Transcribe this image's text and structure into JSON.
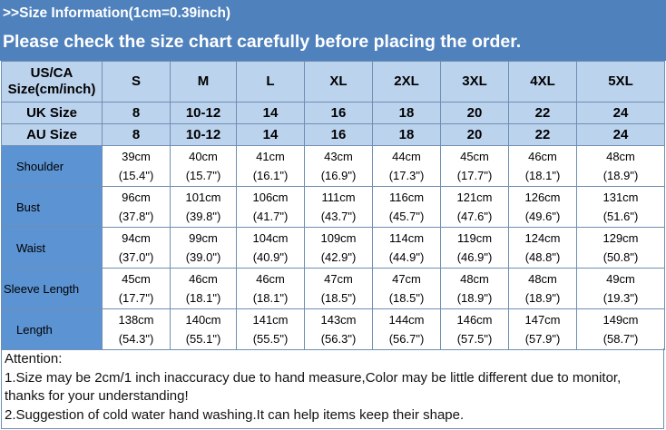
{
  "banner": {
    "line1": ">>Size Information(1cm=0.39inch)",
    "line2": "Please check the size chart carefully before placing the order."
  },
  "header": {
    "label": "US/CA Size(cm/inch)",
    "sizes": [
      "S",
      "M",
      "L",
      "XL",
      "2XL",
      "3XL",
      "4XL",
      "5XL"
    ]
  },
  "uk": {
    "label": "UK Size",
    "values": [
      "8",
      "10-12",
      "14",
      "16",
      "18",
      "20",
      "22",
      "24"
    ]
  },
  "au": {
    "label": "AU Size",
    "values": [
      "8",
      "10-12",
      "14",
      "16",
      "18",
      "20",
      "22",
      "24"
    ]
  },
  "rows": [
    {
      "label": "Shoulder",
      "cm": [
        "39cm",
        "40cm",
        "41cm",
        "43cm",
        "44cm",
        "45cm",
        "46cm",
        "48cm"
      ],
      "in": [
        "(15.4\")",
        "(15.7\")",
        "(16.1\")",
        "(16.9\")",
        "(17.3\")",
        "(17.7\")",
        "(18.1\")",
        "(18.9\")"
      ]
    },
    {
      "label": "Bust",
      "cm": [
        "96cm",
        "101cm",
        "106cm",
        "111cm",
        "116cm",
        "121cm",
        "126cm",
        "131cm"
      ],
      "in": [
        "(37.8\")",
        "(39.8\")",
        "(41.7\")",
        "(43.7\")",
        "(45.7\")",
        "(47.6\")",
        "(49.6\")",
        "(51.6\")"
      ]
    },
    {
      "label": "Waist",
      "cm": [
        "94cm",
        "99cm",
        "104cm",
        "109cm",
        "114cm",
        "119cm",
        "124cm",
        "129cm"
      ],
      "in": [
        "(37.0\")",
        "(39.0\")",
        "(40.9\")",
        "(42.9\")",
        "(44.9\")",
        "(46.9\")",
        "(48.8\")",
        "(50.8\")"
      ]
    },
    {
      "label": "Sleeve Length",
      "cm": [
        "45cm",
        "46cm",
        "46cm",
        "47cm",
        "47cm",
        "48cm",
        "48cm",
        "49cm"
      ],
      "in": [
        "(17.7\")",
        "(18.1\")",
        "(18.1\")",
        "(18.5\")",
        "(18.5\")",
        "(18.9\")",
        "(18.9\")",
        "(19.3\")"
      ]
    },
    {
      "label": "Length",
      "cm": [
        "138cm",
        "140cm",
        "141cm",
        "143cm",
        "144cm",
        "146cm",
        "147cm",
        "149cm"
      ],
      "in": [
        "(54.3\")",
        "(55.1\")",
        "(55.5\")",
        "(56.3\")",
        "(56.7\")",
        "(57.5\")",
        "(57.9\")",
        "(58.7\")"
      ]
    }
  ],
  "notes": [
    "Attention:",
    "1.Size may be 2cm/1 inch inaccuracy due to hand measure,Color may be little different due to monitor,",
    "thanks for your understanding!",
    "2.Suggestion of cold water hand washing.It can help items keep their shape."
  ]
}
